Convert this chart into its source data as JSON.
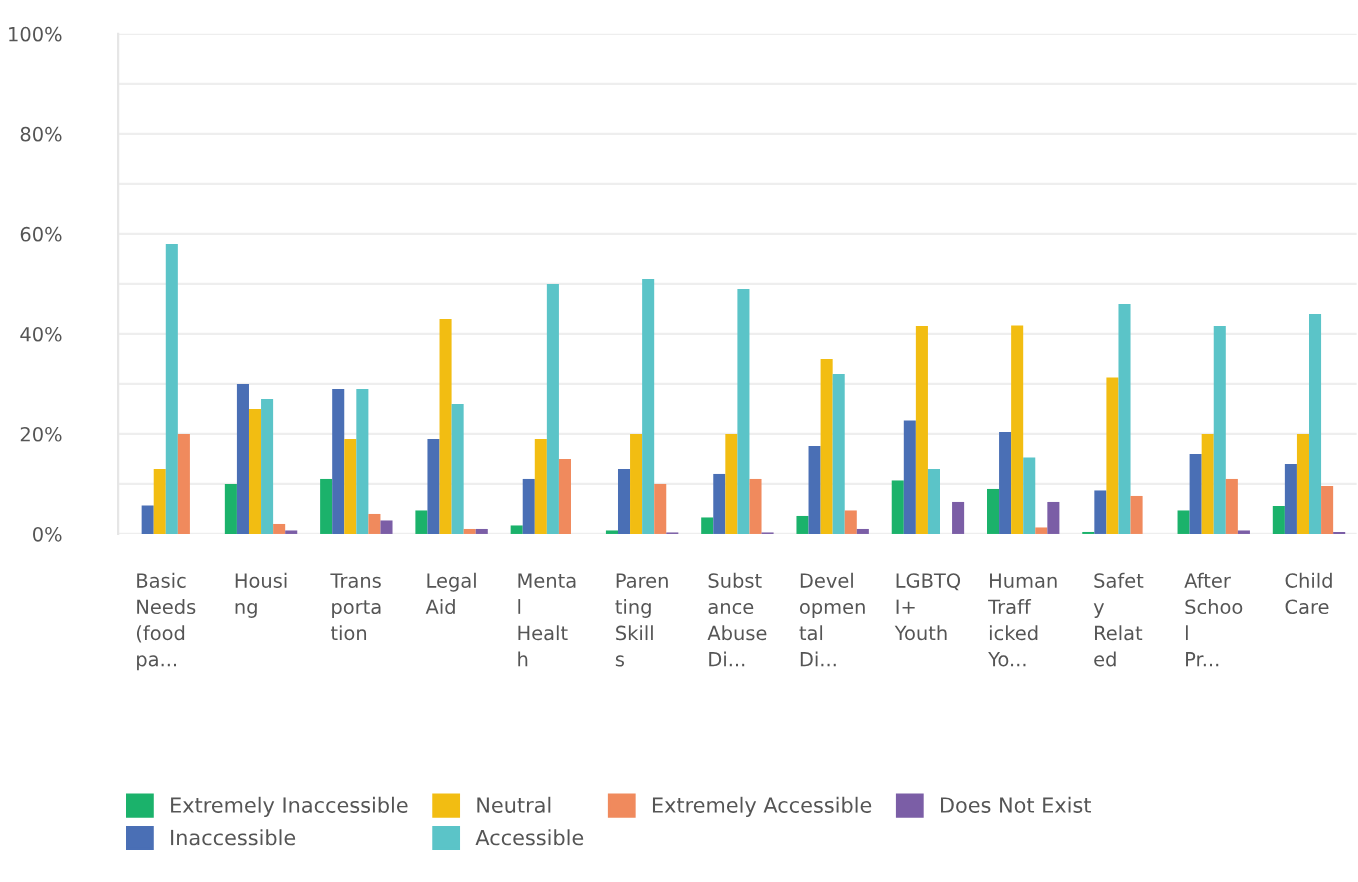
{
  "chart_data": {
    "type": "bar",
    "categories": [
      "Basic\nNeeds\n(food\npa...",
      "Housi\nng",
      "Trans\nporta\ntion",
      "Legal\nAid",
      "Menta\nl\nHealt\nh",
      "Paren\nting\nSkill\ns",
      "Subst\nance\nAbuse\nDi...",
      "Devel\nopmen\ntal\nDi...",
      "LGBTQ\nI+\nYouth",
      "Human\nTraff\nicked\nYo...",
      "Safet\ny\nRelat\ned",
      "After\nSchoo\nl\nPr...",
      "Child\nCare"
    ],
    "series": [
      {
        "name": "Extremely Inaccessible",
        "color": "#1bb26b",
        "values": [
          0,
          10,
          11,
          4.7,
          1.7,
          0.7,
          3.3,
          3.6,
          10.7,
          9,
          0.4,
          4.7,
          5.6
        ]
      },
      {
        "name": "Inaccessible",
        "color": "#4a6fb5",
        "values": [
          5.7,
          30,
          29,
          19,
          11,
          13,
          12,
          17.6,
          22.7,
          20.4,
          8.7,
          16,
          14
        ]
      },
      {
        "name": "Neutral",
        "color": "#f2bd12",
        "values": [
          13,
          25,
          19,
          43,
          19,
          20,
          20,
          35,
          41.6,
          41.7,
          31.3,
          20,
          20
        ]
      },
      {
        "name": "Accessible",
        "color": "#5bc4c8",
        "values": [
          58,
          27,
          29,
          26,
          50,
          51,
          49,
          32,
          13,
          15.3,
          46,
          41.6,
          44
        ]
      },
      {
        "name": "Extremely Accessible",
        "color": "#f08a5d",
        "values": [
          20,
          2,
          4,
          1,
          15,
          10,
          11,
          4.7,
          0,
          1.3,
          7.6,
          11,
          9.6
        ]
      },
      {
        "name": "Does Not Exist",
        "color": "#7b5ea6",
        "values": [
          0,
          0.7,
          2.7,
          1,
          0,
          0.3,
          0.3,
          1,
          6.4,
          6.4,
          0,
          0.7,
          0.4
        ]
      }
    ],
    "ylim": [
      0,
      100
    ],
    "yticks": [
      {
        "value": 0,
        "label": "0%"
      },
      {
        "value": 10,
        "label": null
      },
      {
        "value": 20,
        "label": "20%"
      },
      {
        "value": 30,
        "label": null
      },
      {
        "value": 40,
        "label": "40%"
      },
      {
        "value": 50,
        "label": null
      },
      {
        "value": 60,
        "label": "60%"
      },
      {
        "value": 70,
        "label": null
      },
      {
        "value": 80,
        "label": "80%"
      },
      {
        "value": 90,
        "label": null
      },
      {
        "value": 100,
        "label": "100%"
      }
    ],
    "grid": "y",
    "legend": "bottom"
  }
}
